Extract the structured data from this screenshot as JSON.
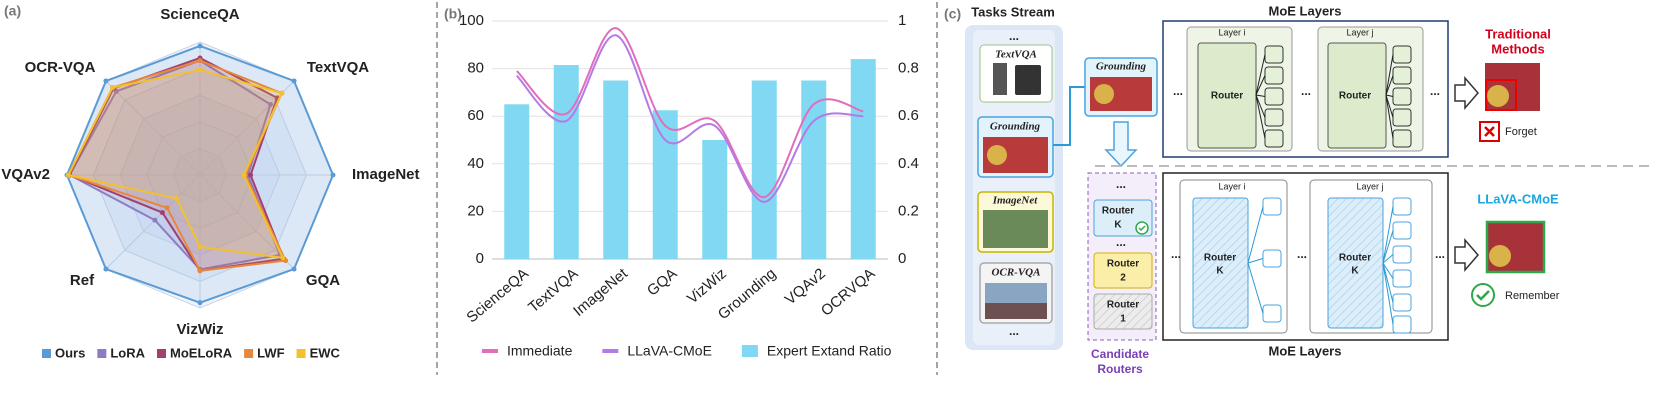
{
  "chart_data": [
    {
      "type": "radar",
      "panel_label": "(a)",
      "axes": [
        "ScienceQA",
        "TextVQA",
        "ImageNet",
        "GQA",
        "VizWiz",
        "Ref",
        "VQAv2",
        "OCR-VQA"
      ],
      "rlim": [
        0,
        100
      ],
      "rticks": [
        20,
        40,
        60,
        80,
        100
      ],
      "grid": true,
      "legend": "bottom",
      "series": [
        {
          "name": "Ours",
          "color": "#5b9bd5",
          "values": [
            97,
            100,
            100,
            100,
            96,
            100,
            100,
            100
          ]
        },
        {
          "name": "LoRA",
          "color": "#8e7cc3",
          "values": [
            86,
            75,
            36,
            85,
            71,
            48,
            98,
            89
          ]
        },
        {
          "name": "MoELoRA",
          "color": "#a0406e",
          "values": [
            88,
            82,
            38,
            89,
            72,
            40,
            98,
            92
          ]
        },
        {
          "name": "LWF",
          "color": "#e8873a",
          "values": [
            86,
            87,
            34,
            91,
            72,
            35,
            99,
            93
          ]
        },
        {
          "name": "EWC",
          "color": "#f2c12e",
          "values": [
            79,
            87,
            33,
            88,
            54,
            25,
            99,
            93
          ]
        }
      ]
    },
    {
      "type": "combo",
      "panel_label": "(b)",
      "categories": [
        "ScienceQA",
        "TextVQA",
        "ImageNet",
        "GQA",
        "VizWiz",
        "Grounding",
        "VQAv2",
        "OCRVQA"
      ],
      "ylim": [
        0,
        100
      ],
      "yticks": [
        0,
        20,
        40,
        60,
        80,
        100
      ],
      "y2lim": [
        0,
        1
      ],
      "y2ticks": [
        0,
        0.2,
        0.4,
        0.6,
        0.8,
        1
      ],
      "grid": true,
      "legend": "bottom",
      "series": [
        {
          "name": "Immediate",
          "type": "line",
          "color": "#e36dbd",
          "values": [
            79,
            61,
            97,
            56,
            58,
            26,
            65,
            62
          ]
        },
        {
          "name": "LLaVA-CMoE",
          "type": "line",
          "color": "#b47be6",
          "values": [
            77,
            58,
            94,
            50,
            56,
            24,
            58,
            60
          ]
        },
        {
          "name": "Expert Extand Ratio",
          "type": "bar",
          "axis": "y2",
          "color": "#80d8f3",
          "values": [
            0.65,
            0.815,
            0.75,
            0.625,
            0.5,
            0.75,
            0.75,
            0.84
          ]
        }
      ]
    }
  ],
  "diagram": {
    "panel_label": "(c)",
    "tasks_stream": {
      "title": "Tasks Stream",
      "ellipsis": "...",
      "tasks": [
        "TextVQA",
        "Grounding",
        "ImageNet",
        "OCR-VQA"
      ]
    },
    "current_task": "Grounding",
    "traditional": {
      "title": "MoE Layers",
      "layers": [
        "Layer i",
        "Layer j"
      ],
      "router": "Router",
      "ellipsis": "...",
      "method": [
        "Traditional",
        "Methods"
      ],
      "result": "Forget"
    },
    "candidate_routers": {
      "ellipsis": "...",
      "routers": [
        {
          "name": "Router",
          "index": "K"
        },
        {
          "name": "Router",
          "index": "2"
        },
        {
          "name": "Router",
          "index": "1"
        }
      ],
      "title": [
        "Candidate",
        "Routers"
      ]
    },
    "ours": {
      "title": "MoE Layers",
      "layers": [
        "Layer i",
        "Layer j"
      ],
      "router": {
        "name": "Router",
        "index": "K"
      },
      "ellipsis": "...",
      "method": "LLaVA-CMoE",
      "result": "Remember"
    }
  }
}
